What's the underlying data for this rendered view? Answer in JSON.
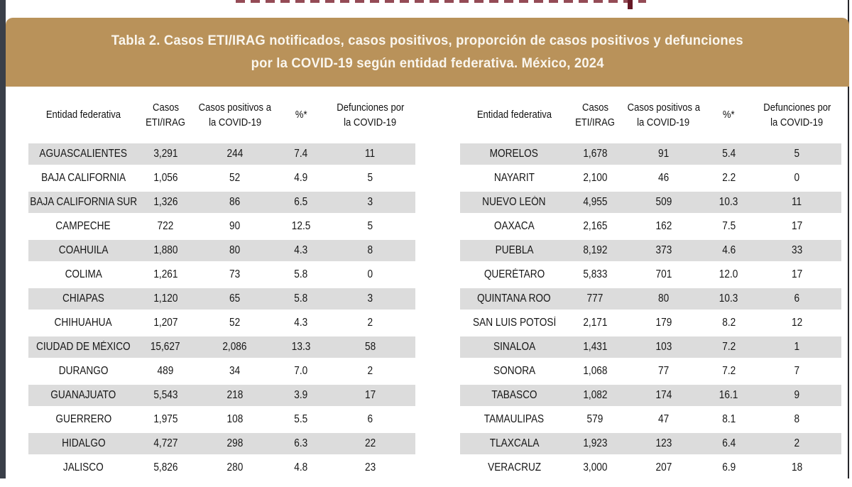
{
  "colors": {
    "banner_tan": "#b9925a",
    "banner_text": "#faf6ee",
    "stripe_gray": "#dcdcdc",
    "clipped_heading_red": "#7a1e2c",
    "edge_dark": "#3a3f49"
  },
  "title": {
    "line1": "Tabla 2. Casos ETI/IRAG notificados, casos positivos, proporción de casos positivos  y defunciones",
    "line2": "por la COVID-19 según entidad federativa. México, 2024"
  },
  "table": {
    "column_keys": [
      "entidad",
      "casos",
      "positivos",
      "pct",
      "defunciones"
    ],
    "columns": [
      {
        "id": "entidad",
        "lines": [
          "Entidad federativa"
        ]
      },
      {
        "id": "casos",
        "lines": [
          "Casos",
          "ETI/IRAG"
        ]
      },
      {
        "id": "positivos",
        "lines": [
          "Casos positivos a",
          "la COVID-19"
        ]
      },
      {
        "id": "pct",
        "lines": [
          "%*"
        ]
      },
      {
        "id": "defunciones",
        "lines": [
          "Defunciones por",
          "la COVID-19"
        ]
      }
    ],
    "left_rows": [
      {
        "entidad": "AGUASCALIENTES",
        "casos": "3,291",
        "positivos": "244",
        "pct": "7.4",
        "defunciones": "11"
      },
      {
        "entidad": "BAJA CALIFORNIA",
        "casos": "1,056",
        "positivos": "52",
        "pct": "4.9",
        "defunciones": "5"
      },
      {
        "entidad": "BAJA CALIFORNIA SUR",
        "casos": "1,326",
        "positivos": "86",
        "pct": "6.5",
        "defunciones": "3"
      },
      {
        "entidad": "CAMPECHE",
        "casos": "722",
        "positivos": "90",
        "pct": "12.5",
        "defunciones": "5"
      },
      {
        "entidad": "COAHUILA",
        "casos": "1,880",
        "positivos": "80",
        "pct": "4.3",
        "defunciones": "8"
      },
      {
        "entidad": "COLIMA",
        "casos": "1,261",
        "positivos": "73",
        "pct": "5.8",
        "defunciones": "0"
      },
      {
        "entidad": "CHIAPAS",
        "casos": "1,120",
        "positivos": "65",
        "pct": "5.8",
        "defunciones": "3"
      },
      {
        "entidad": "CHIHUAHUA",
        "casos": "1,207",
        "positivos": "52",
        "pct": "4.3",
        "defunciones": "2"
      },
      {
        "entidad": "CIUDAD DE MÉXICO",
        "casos": "15,627",
        "positivos": "2,086",
        "pct": "13.3",
        "defunciones": "58"
      },
      {
        "entidad": "DURANGO",
        "casos": "489",
        "positivos": "34",
        "pct": "7.0",
        "defunciones": "2"
      },
      {
        "entidad": "GUANAJUATO",
        "casos": "5,543",
        "positivos": "218",
        "pct": "3.9",
        "defunciones": "17"
      },
      {
        "entidad": "GUERRERO",
        "casos": "1,975",
        "positivos": "108",
        "pct": "5.5",
        "defunciones": "6"
      },
      {
        "entidad": "HIDALGO",
        "casos": "4,727",
        "positivos": "298",
        "pct": "6.3",
        "defunciones": "22"
      },
      {
        "entidad": "JALISCO",
        "casos": "5,826",
        "positivos": "280",
        "pct": "4.8",
        "defunciones": "23"
      }
    ],
    "right_rows": [
      {
        "entidad": "MORELOS",
        "casos": "1,678",
        "positivos": "91",
        "pct": "5.4",
        "defunciones": "5"
      },
      {
        "entidad": "NAYARIT",
        "casos": "2,100",
        "positivos": "46",
        "pct": "2.2",
        "defunciones": "0"
      },
      {
        "entidad": "NUEVO LEÓN",
        "casos": "4,955",
        "positivos": "509",
        "pct": "10.3",
        "defunciones": "11"
      },
      {
        "entidad": "OAXACA",
        "casos": "2,165",
        "positivos": "162",
        "pct": "7.5",
        "defunciones": "17"
      },
      {
        "entidad": "PUEBLA",
        "casos": "8,192",
        "positivos": "373",
        "pct": "4.6",
        "defunciones": "33"
      },
      {
        "entidad": "QUERÉTARO",
        "casos": "5,833",
        "positivos": "701",
        "pct": "12.0",
        "defunciones": "17"
      },
      {
        "entidad": "QUINTANA ROO",
        "casos": "777",
        "positivos": "80",
        "pct": "10.3",
        "defunciones": "6"
      },
      {
        "entidad": "SAN LUIS POTOSÍ",
        "casos": "2,171",
        "positivos": "179",
        "pct": "8.2",
        "defunciones": "12"
      },
      {
        "entidad": "SINALOA",
        "casos": "1,431",
        "positivos": "103",
        "pct": "7.2",
        "defunciones": "1"
      },
      {
        "entidad": "SONORA",
        "casos": "1,068",
        "positivos": "77",
        "pct": "7.2",
        "defunciones": "7"
      },
      {
        "entidad": "TABASCO",
        "casos": "1,082",
        "positivos": "174",
        "pct": "16.1",
        "defunciones": "9"
      },
      {
        "entidad": "TAMAULIPAS",
        "casos": "579",
        "positivos": "47",
        "pct": "8.1",
        "defunciones": "8"
      },
      {
        "entidad": "TLAXCALA",
        "casos": "1,923",
        "positivos": "123",
        "pct": "6.4",
        "defunciones": "2"
      },
      {
        "entidad": "VERACRUZ",
        "casos": "3,000",
        "positivos": "207",
        "pct": "6.9",
        "defunciones": "18"
      }
    ]
  }
}
